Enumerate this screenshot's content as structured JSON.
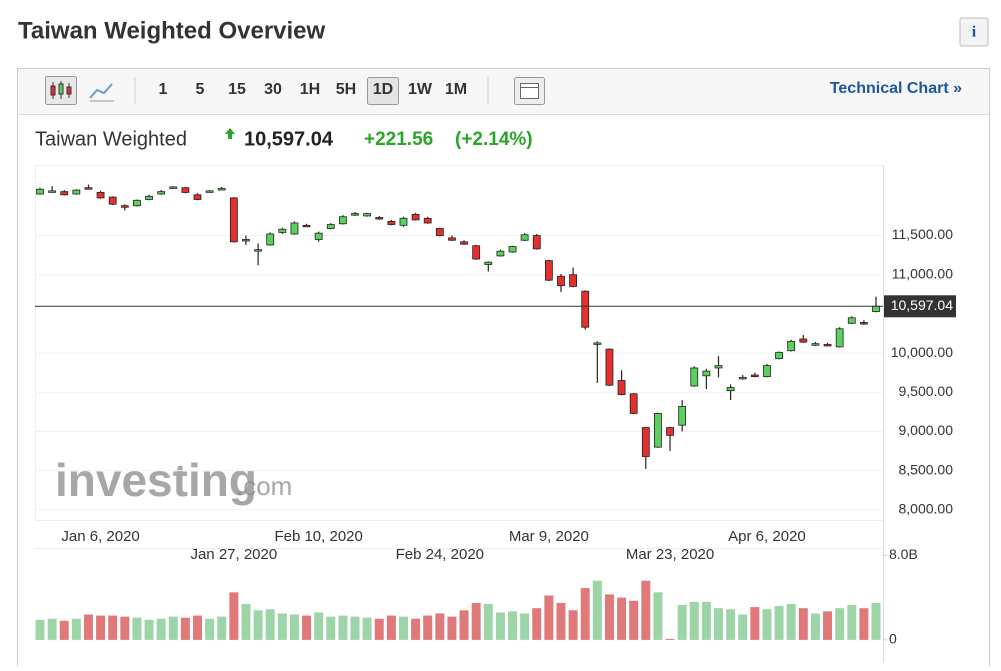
{
  "header": {
    "title": "Taiwan Weighted Overview",
    "info": "i"
  },
  "toolbar": {
    "intervals": [
      "1",
      "5",
      "15",
      "30",
      "1H",
      "5H",
      "1D",
      "1W",
      "1M"
    ],
    "selected": "1D",
    "link": "Technical Chart »"
  },
  "chart_data": {
    "type": "candlestick",
    "name": "Taiwan Weighted",
    "change": "+221.56",
    "change_percent": "(+2.14%)",
    "last_price": {
      "value": 10597.04,
      "label": "10,597.04"
    },
    "watermark": {
      "brand": "investing",
      "suffix": ".com"
    },
    "up_color": "#5cd05c",
    "down_color": "#e3302f",
    "categories": [
      null,
      null,
      null,
      null,
      null,
      "Jan 6, 2020",
      null,
      null,
      null,
      null,
      null,
      null,
      null,
      null,
      null,
      null,
      "Jan 27, 2020",
      null,
      null,
      null,
      null,
      null,
      null,
      "Feb 10, 2020",
      null,
      null,
      null,
      null,
      null,
      null,
      null,
      null,
      null,
      "Feb 24, 2020",
      null,
      null,
      null,
      null,
      null,
      null,
      null,
      null,
      "Mar 9, 2020",
      null,
      null,
      null,
      null,
      null,
      null,
      null,
      null,
      null,
      "Mar 23, 2020",
      null,
      null,
      null,
      null,
      null,
      null,
      null,
      "Apr 6, 2020",
      null,
      null,
      null,
      null,
      null,
      null,
      null,
      null,
      null
    ],
    "open": [
      12030,
      12060,
      12060,
      12030,
      12110,
      12050,
      11990,
      11880,
      11880,
      11960,
      12030,
      12110,
      12110,
      12020,
      12060,
      12090,
      11980,
      11440,
      11310,
      11380,
      11540,
      11520,
      11630,
      11450,
      11590,
      11650,
      11760,
      11750,
      11730,
      11680,
      11630,
      11770,
      11720,
      11590,
      11470,
      11420,
      11370,
      11130,
      11240,
      11290,
      11440,
      11500,
      11180,
      10980,
      11000,
      10790,
      10120,
      10050,
      9650,
      9480,
      9050,
      8800,
      9050,
      9080,
      9580,
      9710,
      9810,
      9520,
      9680,
      9720,
      9700,
      9930,
      10030,
      10180,
      10100,
      10110,
      10080,
      10380,
      10390,
      10530
    ],
    "high": [
      12110,
      12130,
      12080,
      12090,
      12150,
      12070,
      12000,
      11900,
      11960,
      12020,
      12080,
      12130,
      12120,
      12040,
      12080,
      12120,
      11990,
      11500,
      11400,
      11540,
      11600,
      11680,
      11650,
      11550,
      11660,
      11760,
      11800,
      11790,
      11750,
      11700,
      11740,
      11790,
      11740,
      11600,
      11500,
      11440,
      11380,
      11170,
      11320,
      11370,
      11530,
      11520,
      11190,
      11010,
      11090,
      10800,
      10150,
      10060,
      9780,
      9490,
      9060,
      9240,
      9060,
      9400,
      9830,
      9800,
      9960,
      9600,
      9720,
      9750,
      9860,
      10020,
      10170,
      10230,
      10140,
      10130,
      10330,
      10470,
      10420,
      10720
    ],
    "low": [
      12020,
      12050,
      12010,
      12020,
      12090,
      11970,
      11890,
      11820,
      11870,
      11950,
      12020,
      12100,
      12040,
      11950,
      12050,
      12080,
      11410,
      11380,
      11120,
      11370,
      11520,
      11510,
      11610,
      11420,
      11580,
      11640,
      11750,
      11740,
      11700,
      11630,
      11610,
      11690,
      11650,
      11490,
      11430,
      11380,
      11190,
      11040,
      11230,
      11280,
      11430,
      11320,
      10920,
      10780,
      10840,
      10300,
      9620,
      9580,
      9460,
      9220,
      8520,
      8790,
      8750,
      9000,
      9570,
      9540,
      9690,
      9400,
      9660,
      9690,
      9690,
      9920,
      10020,
      10130,
      10090,
      10090,
      10070,
      10370,
      10360,
      10520
    ],
    "close": [
      12090,
      12070,
      12020,
      12080,
      12100,
      11980,
      11900,
      11870,
      11950,
      12000,
      12060,
      12120,
      12050,
      11960,
      12070,
      12100,
      11420,
      11450,
      11320,
      11520,
      11580,
      11660,
      11620,
      11530,
      11640,
      11740,
      11780,
      11780,
      11720,
      11640,
      11720,
      11700,
      11660,
      11500,
      11440,
      11390,
      11200,
      11160,
      11300,
      11360,
      11510,
      11330,
      10930,
      10860,
      10850,
      10330,
      10130,
      9590,
      9470,
      9230,
      8680,
      9230,
      8950,
      9320,
      9810,
      9770,
      9840,
      9560,
      9690,
      9700,
      9840,
      10010,
      10150,
      10140,
      10120,
      10100,
      10310,
      10450,
      10380,
      10597.04
    ],
    "volume": [
      1.9,
      2.0,
      1.8,
      2.0,
      2.4,
      2.3,
      2.3,
      2.2,
      2.1,
      1.9,
      2.0,
      2.2,
      2.1,
      2.3,
      2.0,
      2.2,
      4.5,
      3.4,
      2.8,
      2.9,
      2.5,
      2.4,
      2.3,
      2.6,
      2.2,
      2.3,
      2.2,
      2.1,
      2.0,
      2.3,
      2.2,
      2.0,
      2.3,
      2.5,
      2.2,
      2.8,
      3.5,
      3.4,
      2.6,
      2.7,
      2.5,
      3.0,
      4.2,
      3.5,
      2.8,
      4.9,
      5.6,
      4.3,
      4.0,
      3.7,
      5.6,
      4.5,
      0.1,
      3.3,
      3.6,
      3.6,
      3.0,
      2.9,
      2.4,
      3.1,
      2.9,
      3.2,
      3.4,
      3.0,
      2.5,
      2.7,
      3.0,
      3.3,
      3.0,
      3.5
    ],
    "ylim": [
      7870,
      12400
    ],
    "yticks": [
      {
        "value": 8000,
        "label": "8,000.00"
      },
      {
        "value": 8500,
        "label": "8,500.00"
      },
      {
        "value": 9000,
        "label": "9,000.00"
      },
      {
        "value": 9500,
        "label": "9,500.00"
      },
      {
        "value": 10000,
        "label": "10,000.00"
      },
      {
        "value": 11000,
        "label": "11,000.00"
      },
      {
        "value": 11500,
        "label": "11,500.00"
      }
    ],
    "y2lim": [
      -1.9,
      8.5
    ],
    "y2ticks": [
      0,
      {
        "value": 8,
        "label": "8.0B"
      }
    ],
    "volume_up_color": "#9dd5a8",
    "volume_down_color": "#e07a7a"
  }
}
